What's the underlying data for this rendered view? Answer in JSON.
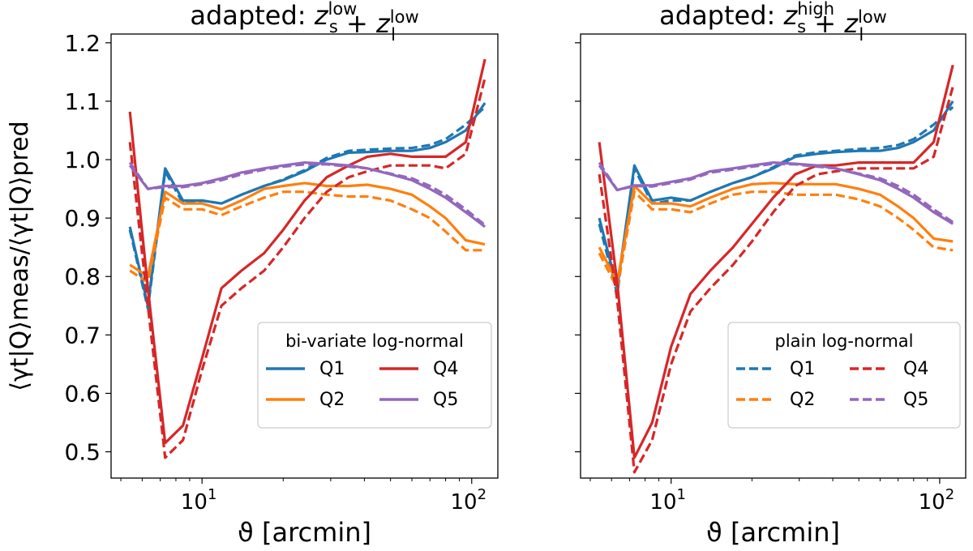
{
  "chart_data": [
    {
      "type": "line",
      "title_prefix": "adapted: ",
      "title_sub": [
        {
          "base": "z",
          "sub": "s",
          "sup": "low"
        },
        {
          "base": "z",
          "sub": "l",
          "sup": "low"
        }
      ],
      "xlabel": "ϑ [arcmin]",
      "ylabel": "⟨γt|Q⟩meas/⟨γt|Q⟩pred",
      "xscale": "log",
      "xlim": [
        4.6,
        125
      ],
      "ylim": [
        0.455,
        1.215
      ],
      "yticks": [
        0.5,
        0.6,
        0.7,
        0.8,
        0.9,
        1.0,
        1.1,
        1.2
      ],
      "ytick_labels": [
        "0.5",
        "0.6",
        "0.7",
        "0.8",
        "0.9",
        "1.0",
        "1.1",
        "1.2"
      ],
      "xticks_major": [
        {
          "value": 10,
          "base": "10",
          "exp": "1"
        },
        {
          "value": 100,
          "base": "10",
          "exp": "2"
        }
      ],
      "legend": {
        "title": "bi-variate log-normal",
        "style": "solid",
        "placement": "lower-right",
        "entries": [
          "Q1",
          "Q4",
          "Q2",
          "Q5"
        ]
      },
      "series": [
        {
          "name": "Q1",
          "color": "#1f77b4",
          "x": [
            5.4,
            6.3,
            7.3,
            8.5,
            10,
            11.8,
            14,
            17,
            20,
            24,
            29,
            35,
            41,
            50,
            60,
            70,
            80,
            95,
            112
          ],
          "values": [
            0.885,
            0.75,
            0.985,
            0.93,
            0.93,
            0.925,
            0.94,
            0.955,
            0.965,
            0.98,
            1.0,
            1.012,
            1.013,
            1.015,
            1.015,
            1.02,
            1.03,
            1.05,
            1.097
          ],
          "dashed": [
            0.88,
            0.745,
            0.98,
            0.925,
            0.93,
            0.925,
            0.94,
            0.955,
            0.966,
            0.982,
            1.003,
            1.015,
            1.017,
            1.019,
            1.02,
            1.025,
            1.035,
            1.06,
            1.09
          ]
        },
        {
          "name": "Q2",
          "color": "#ff7f0e",
          "x": [
            5.4,
            6.3,
            7.3,
            8.5,
            10,
            11.8,
            14,
            17,
            20,
            24,
            29,
            35,
            41,
            50,
            60,
            70,
            80,
            95,
            112
          ],
          "values": [
            0.82,
            0.8,
            0.945,
            0.925,
            0.925,
            0.915,
            0.93,
            0.95,
            0.955,
            0.96,
            0.955,
            0.955,
            0.957,
            0.95,
            0.94,
            0.92,
            0.9,
            0.862,
            0.855
          ],
          "dashed": [
            0.81,
            0.79,
            0.935,
            0.915,
            0.915,
            0.905,
            0.92,
            0.935,
            0.945,
            0.945,
            0.94,
            0.937,
            0.937,
            0.93,
            0.915,
            0.9,
            0.877,
            0.845,
            0.845
          ]
        },
        {
          "name": "Q4",
          "color": "#d62728",
          "x": [
            5.4,
            6.3,
            7.3,
            8.5,
            10,
            11.8,
            14,
            17,
            20,
            24,
            29,
            35,
            41,
            50,
            60,
            70,
            80,
            95,
            112
          ],
          "values": [
            1.082,
            0.78,
            0.515,
            0.545,
            0.66,
            0.78,
            0.81,
            0.84,
            0.88,
            0.93,
            0.97,
            0.99,
            1.005,
            1.01,
            1.005,
            1.005,
            1.005,
            1.03,
            1.172
          ],
          "dashed": [
            1.03,
            0.75,
            0.49,
            0.52,
            0.64,
            0.75,
            0.78,
            0.81,
            0.85,
            0.9,
            0.945,
            0.97,
            0.98,
            0.99,
            0.99,
            0.99,
            0.985,
            1.01,
            1.14
          ]
        },
        {
          "name": "Q5",
          "color": "#9467bd",
          "x": [
            5.4,
            6.3,
            7.3,
            8.5,
            10,
            11.8,
            14,
            17,
            20,
            24,
            29,
            35,
            41,
            50,
            60,
            70,
            80,
            95,
            112
          ],
          "values": [
            0.99,
            0.95,
            0.955,
            0.955,
            0.96,
            0.968,
            0.978,
            0.985,
            0.99,
            0.995,
            0.993,
            0.99,
            0.985,
            0.975,
            0.965,
            0.95,
            0.935,
            0.91,
            0.885
          ],
          "dashed": [
            0.995,
            0.95,
            0.953,
            0.953,
            0.958,
            0.965,
            0.975,
            0.983,
            0.988,
            0.992,
            0.992,
            0.988,
            0.985,
            0.976,
            0.968,
            0.955,
            0.94,
            0.915,
            0.888
          ]
        }
      ]
    },
    {
      "type": "line",
      "title_prefix": "adapted: ",
      "title_sub": [
        {
          "base": "z",
          "sub": "s",
          "sup": "high"
        },
        {
          "base": "z",
          "sub": "l",
          "sup": "low"
        }
      ],
      "xlabel": "ϑ [arcmin]",
      "ylabel": "",
      "xscale": "log",
      "xlim": [
        4.6,
        125
      ],
      "ylim": [
        0.455,
        1.215
      ],
      "yticks": [
        0.5,
        0.6,
        0.7,
        0.8,
        0.9,
        1.0,
        1.1,
        1.2
      ],
      "ytick_labels": [],
      "xticks_major": [
        {
          "value": 10,
          "base": "10",
          "exp": "1"
        },
        {
          "value": 100,
          "base": "10",
          "exp": "2"
        }
      ],
      "legend": {
        "title": "plain log-normal",
        "style": "dashed",
        "placement": "lower-right",
        "entries": [
          "Q1",
          "Q4",
          "Q2",
          "Q5"
        ]
      },
      "series": [
        {
          "name": "Q1",
          "color": "#1f77b4",
          "x": [
            5.4,
            6.3,
            7.3,
            8.5,
            10,
            11.8,
            14,
            17,
            20,
            24,
            29,
            35,
            41,
            50,
            60,
            70,
            80,
            95,
            112
          ],
          "values": [
            0.9,
            0.78,
            0.99,
            0.93,
            0.935,
            0.93,
            0.945,
            0.96,
            0.97,
            0.985,
            1.005,
            1.01,
            1.013,
            1.015,
            1.015,
            1.02,
            1.03,
            1.05,
            1.1
          ],
          "dashed": [
            0.89,
            0.77,
            0.985,
            0.925,
            0.93,
            0.93,
            0.945,
            0.96,
            0.97,
            0.987,
            1.007,
            1.013,
            1.015,
            1.018,
            1.02,
            1.025,
            1.035,
            1.06,
            1.09
          ]
        },
        {
          "name": "Q2",
          "color": "#ff7f0e",
          "x": [
            5.4,
            6.3,
            7.3,
            8.5,
            10,
            11.8,
            14,
            17,
            20,
            24,
            29,
            35,
            41,
            50,
            60,
            70,
            80,
            95,
            112
          ],
          "values": [
            0.85,
            0.79,
            0.955,
            0.925,
            0.925,
            0.92,
            0.935,
            0.95,
            0.958,
            0.96,
            0.958,
            0.958,
            0.958,
            0.95,
            0.94,
            0.92,
            0.9,
            0.865,
            0.86
          ],
          "dashed": [
            0.84,
            0.78,
            0.945,
            0.915,
            0.915,
            0.91,
            0.925,
            0.94,
            0.945,
            0.945,
            0.94,
            0.94,
            0.94,
            0.932,
            0.92,
            0.9,
            0.88,
            0.85,
            0.845
          ]
        },
        {
          "name": "Q4",
          "color": "#d62728",
          "x": [
            5.4,
            6.3,
            7.3,
            8.5,
            10,
            11.8,
            14,
            17,
            20,
            24,
            29,
            35,
            41,
            50,
            60,
            70,
            80,
            95,
            112
          ],
          "values": [
            1.03,
            0.79,
            0.49,
            0.55,
            0.68,
            0.77,
            0.81,
            0.85,
            0.89,
            0.935,
            0.975,
            0.99,
            0.99,
            0.995,
            0.995,
            0.995,
            0.995,
            1.03,
            1.162
          ],
          "dashed": [
            0.975,
            0.76,
            0.465,
            0.52,
            0.65,
            0.74,
            0.78,
            0.82,
            0.86,
            0.91,
            0.955,
            0.975,
            0.98,
            0.985,
            0.985,
            0.985,
            0.985,
            1.005,
            1.125
          ]
        },
        {
          "name": "Q5",
          "color": "#9467bd",
          "x": [
            5.4,
            6.3,
            7.3,
            8.5,
            10,
            11.8,
            14,
            17,
            20,
            24,
            29,
            35,
            41,
            50,
            60,
            70,
            80,
            95,
            112
          ],
          "values": [
            0.99,
            0.948,
            0.956,
            0.956,
            0.962,
            0.968,
            0.98,
            0.985,
            0.99,
            0.995,
            0.993,
            0.99,
            0.985,
            0.975,
            0.965,
            0.95,
            0.935,
            0.91,
            0.89
          ],
          "dashed": [
            0.995,
            0.948,
            0.955,
            0.954,
            0.96,
            0.966,
            0.978,
            0.983,
            0.988,
            0.993,
            0.992,
            0.988,
            0.985,
            0.976,
            0.968,
            0.955,
            0.94,
            0.915,
            0.893
          ]
        }
      ]
    }
  ]
}
